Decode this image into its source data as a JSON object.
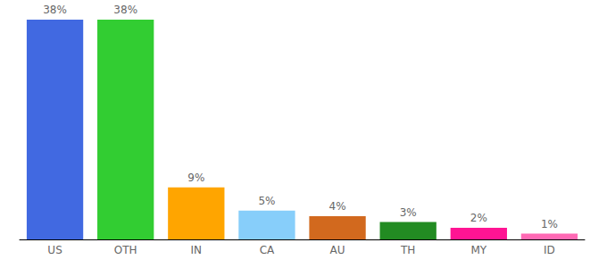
{
  "chart_data": {
    "type": "bar",
    "categories": [
      "US",
      "OTH",
      "IN",
      "CA",
      "AU",
      "TH",
      "MY",
      "ID"
    ],
    "values": [
      38,
      38,
      9,
      5,
      4,
      3,
      2,
      1
    ],
    "value_labels": [
      "38%",
      "38%",
      "9%",
      "5%",
      "4%",
      "3%",
      "2%",
      "1%"
    ],
    "colors": [
      "#4169e1",
      "#32cd32",
      "#ffa500",
      "#87cefa",
      "#d2691e",
      "#228b22",
      "#ff1493",
      "#ff69b4"
    ],
    "ylim": [
      0,
      38
    ],
    "grid": false,
    "data_labels": true,
    "tick_labels": "x"
  }
}
